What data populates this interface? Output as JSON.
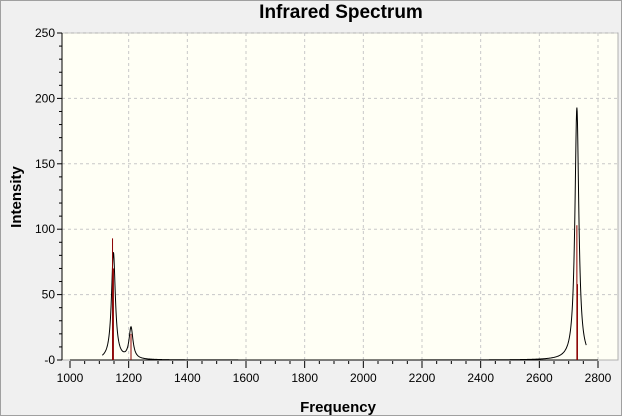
{
  "chart_data": {
    "type": "line",
    "title": "Infrared Spectrum",
    "xlabel": "Frequency",
    "ylabel": "Intensity",
    "xlim": [
      1000,
      2800
    ],
    "ylim": [
      0,
      250
    ],
    "x_ticks": [
      1000,
      1200,
      1400,
      1600,
      1800,
      2000,
      2200,
      2400,
      2600,
      2800
    ],
    "y_ticks": [
      0,
      50,
      100,
      150,
      200,
      250
    ],
    "grid": true,
    "series": [
      {
        "kind": "spectrum",
        "color": "#000000",
        "peaks": [
          {
            "x": 1148,
            "y": 82,
            "width": 8
          },
          {
            "x": 1208,
            "y": 24,
            "width": 8
          },
          {
            "x": 2728,
            "y": 193,
            "width": 8
          }
        ]
      },
      {
        "kind": "stick-lines",
        "color": "#8b0000",
        "x": [
          1145,
          1148,
          1208,
          2728,
          2730
        ],
        "y": [
          93,
          70,
          20,
          103,
          58
        ]
      }
    ]
  },
  "colors": {
    "plot_background": "#fffff5",
    "grid": "#c8c8c8",
    "spectrum": "#000000",
    "sticks": "#8b0000"
  }
}
